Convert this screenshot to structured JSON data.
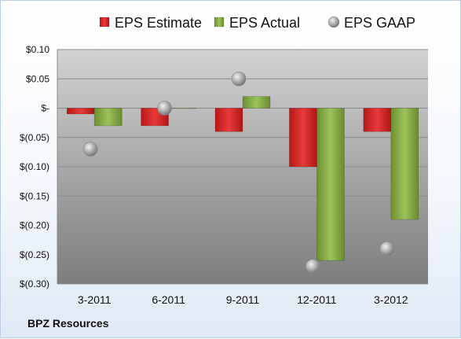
{
  "company": "BPZ Resources",
  "colors": {
    "estimate": "#d42a2a",
    "actual": "#8cb048",
    "gaap": "#a8a8a8"
  },
  "chart_data": {
    "type": "bar",
    "categories": [
      "3-2011",
      "6-2011",
      "9-2011",
      "12-2011",
      "3-2012"
    ],
    "series": [
      {
        "name": "EPS Estimate",
        "kind": "bar",
        "values": [
          -0.01,
          -0.03,
          -0.04,
          -0.1,
          -0.04
        ]
      },
      {
        "name": "EPS Actual",
        "kind": "bar",
        "values": [
          -0.03,
          0.0,
          0.02,
          -0.26,
          -0.19
        ]
      },
      {
        "name": "EPS GAAP",
        "kind": "point",
        "values": [
          -0.07,
          0.0,
          0.05,
          -0.27,
          -0.24
        ]
      }
    ],
    "y_ticks": [
      0.1,
      0.05,
      0.0,
      -0.05,
      -0.1,
      -0.15,
      -0.2,
      -0.25,
      -0.3
    ],
    "y_tick_labels": [
      "$0.10",
      "$0.05",
      "$-",
      "$(0.05)",
      "$(0.10)",
      "$(0.15)",
      "$(0.20)",
      "$(0.25)",
      "$(0.30)"
    ],
    "ylim": [
      -0.3,
      0.1
    ],
    "grid": true,
    "legend_position": "top"
  }
}
